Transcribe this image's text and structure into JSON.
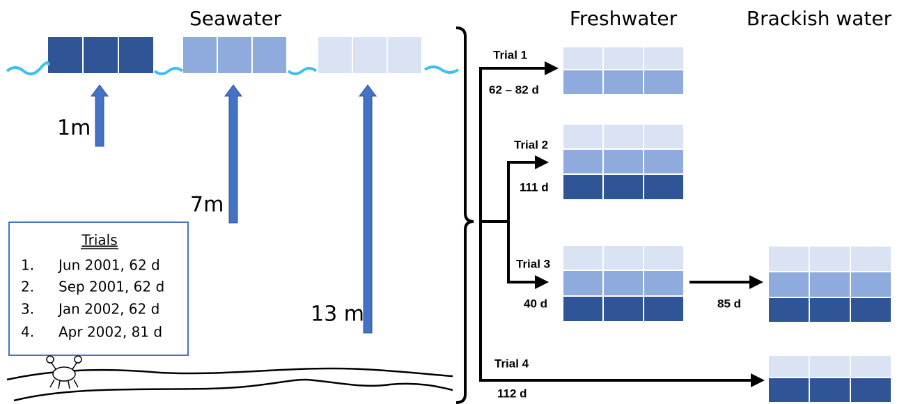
{
  "header": {
    "seawater": "Seawater",
    "freshwater": "Freshwater",
    "brackish": "Brackish water"
  },
  "depths": [
    "1m",
    "7m",
    "13 m"
  ],
  "legend": {
    "title": "Trials",
    "items": [
      {
        "number": "1.",
        "text": "Jun 2001, 62 d"
      },
      {
        "number": "2.",
        "text": "Sep 2001, 62 d"
      },
      {
        "number": "3.",
        "text": "Jan 2002, 62 d"
      },
      {
        "number": "4.",
        "text": "Apr 2002, 81 d"
      }
    ]
  },
  "trials": [
    {
      "label": "Trial 1",
      "duration": "62 – 82 d"
    },
    {
      "label": "Trial 2",
      "duration": "111 d"
    },
    {
      "label": "Trial 3",
      "duration": "40 d"
    },
    {
      "label": "Trial 4",
      "duration": "112 d"
    }
  ],
  "transfer": "85 d"
}
